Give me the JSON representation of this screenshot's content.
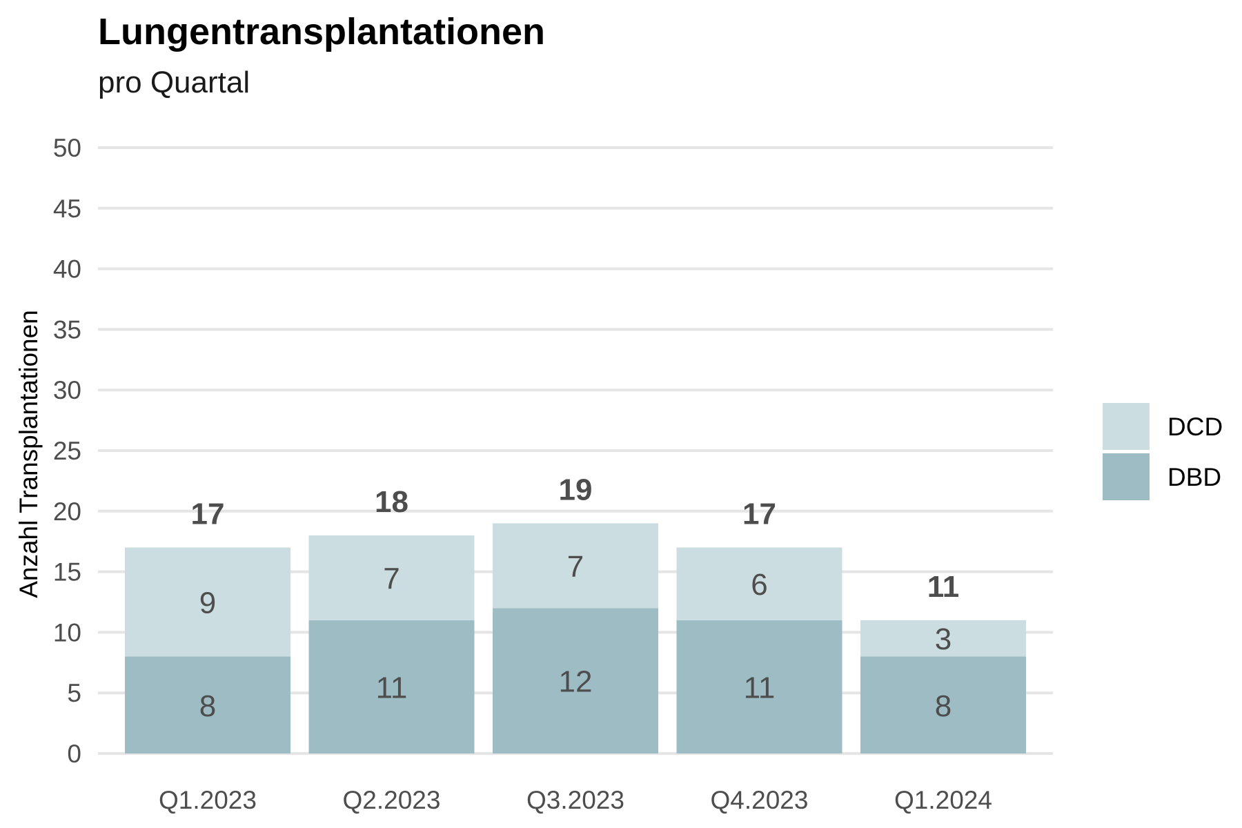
{
  "chart_data": {
    "type": "bar",
    "stacked": true,
    "title": "Lungentransplantationen",
    "subtitle": "pro Quartal",
    "xlabel": "",
    "ylabel": "Anzahl Transplantationen",
    "ylim": [
      0,
      50
    ],
    "yticks": [
      0,
      5,
      10,
      15,
      20,
      25,
      30,
      35,
      40,
      45,
      50
    ],
    "grid": true,
    "legend_position": "right",
    "categories": [
      "Q1.2023",
      "Q2.2023",
      "Q3.2023",
      "Q4.2023",
      "Q1.2024"
    ],
    "series": [
      {
        "name": "DBD",
        "color": "#9dbcc4",
        "values": [
          8,
          11,
          12,
          11,
          8
        ]
      },
      {
        "name": "DCD",
        "color": "#ccdde1",
        "values": [
          9,
          7,
          7,
          6,
          3
        ]
      }
    ],
    "totals": [
      17,
      18,
      19,
      17,
      11
    ],
    "legend_order": [
      "DCD",
      "DBD"
    ]
  }
}
